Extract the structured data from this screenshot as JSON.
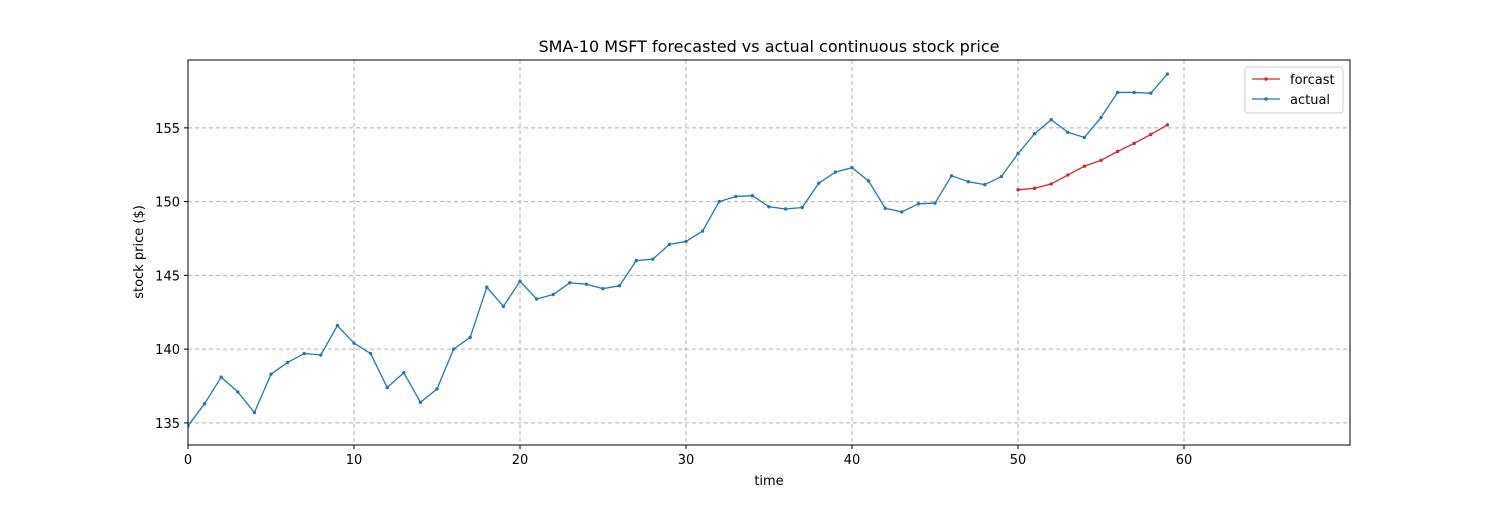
{
  "chart_data": {
    "type": "line",
    "title": "SMA-10 MSFT forecasted vs actual continuous stock price",
    "xlabel": "time",
    "ylabel": "stock price ($)",
    "xlim": [
      0,
      70
    ],
    "ylim": [
      133.5,
      159.6
    ],
    "xticks": [
      0,
      10,
      20,
      30,
      40,
      50,
      60
    ],
    "yticks": [
      135,
      140,
      145,
      150,
      155
    ],
    "grid": true,
    "legend_position": "top-right",
    "series": [
      {
        "name": "forcast",
        "color": "#d62728",
        "x": [
          50,
          51,
          52,
          53,
          54,
          55,
          56,
          57,
          58,
          59
        ],
        "y": [
          150.8,
          150.9,
          151.2,
          151.8,
          152.4,
          152.8,
          153.4,
          153.95,
          154.55,
          155.2
        ]
      },
      {
        "name": "actual",
        "color": "#1f77b4",
        "x": [
          0,
          1,
          2,
          3,
          4,
          5,
          6,
          7,
          8,
          9,
          10,
          11,
          12,
          13,
          14,
          15,
          16,
          17,
          18,
          19,
          20,
          21,
          22,
          23,
          24,
          25,
          26,
          27,
          28,
          29,
          30,
          31,
          32,
          33,
          34,
          35,
          36,
          37,
          38,
          39,
          40,
          41,
          42,
          43,
          44,
          45,
          46,
          47,
          48,
          49,
          50,
          51,
          52,
          53,
          54,
          55,
          56,
          57,
          58,
          59
        ],
        "y": [
          134.8,
          136.3,
          138.1,
          137.1,
          135.7,
          138.3,
          139.1,
          139.7,
          139.6,
          141.6,
          140.4,
          139.7,
          137.4,
          138.4,
          136.4,
          137.3,
          140.0,
          140.8,
          144.2,
          142.9,
          144.6,
          143.4,
          143.7,
          144.5,
          144.4,
          144.1,
          144.3,
          146.0,
          146.1,
          147.1,
          147.3,
          148.0,
          150.0,
          150.35,
          150.4,
          149.65,
          149.5,
          149.6,
          151.25,
          152.0,
          152.3,
          151.4,
          149.55,
          149.3,
          149.85,
          149.9,
          151.75,
          151.35,
          151.15,
          151.7,
          153.25,
          154.6,
          155.55,
          154.7,
          154.35,
          155.7,
          157.4,
          157.4,
          157.35,
          158.65
        ]
      }
    ]
  }
}
